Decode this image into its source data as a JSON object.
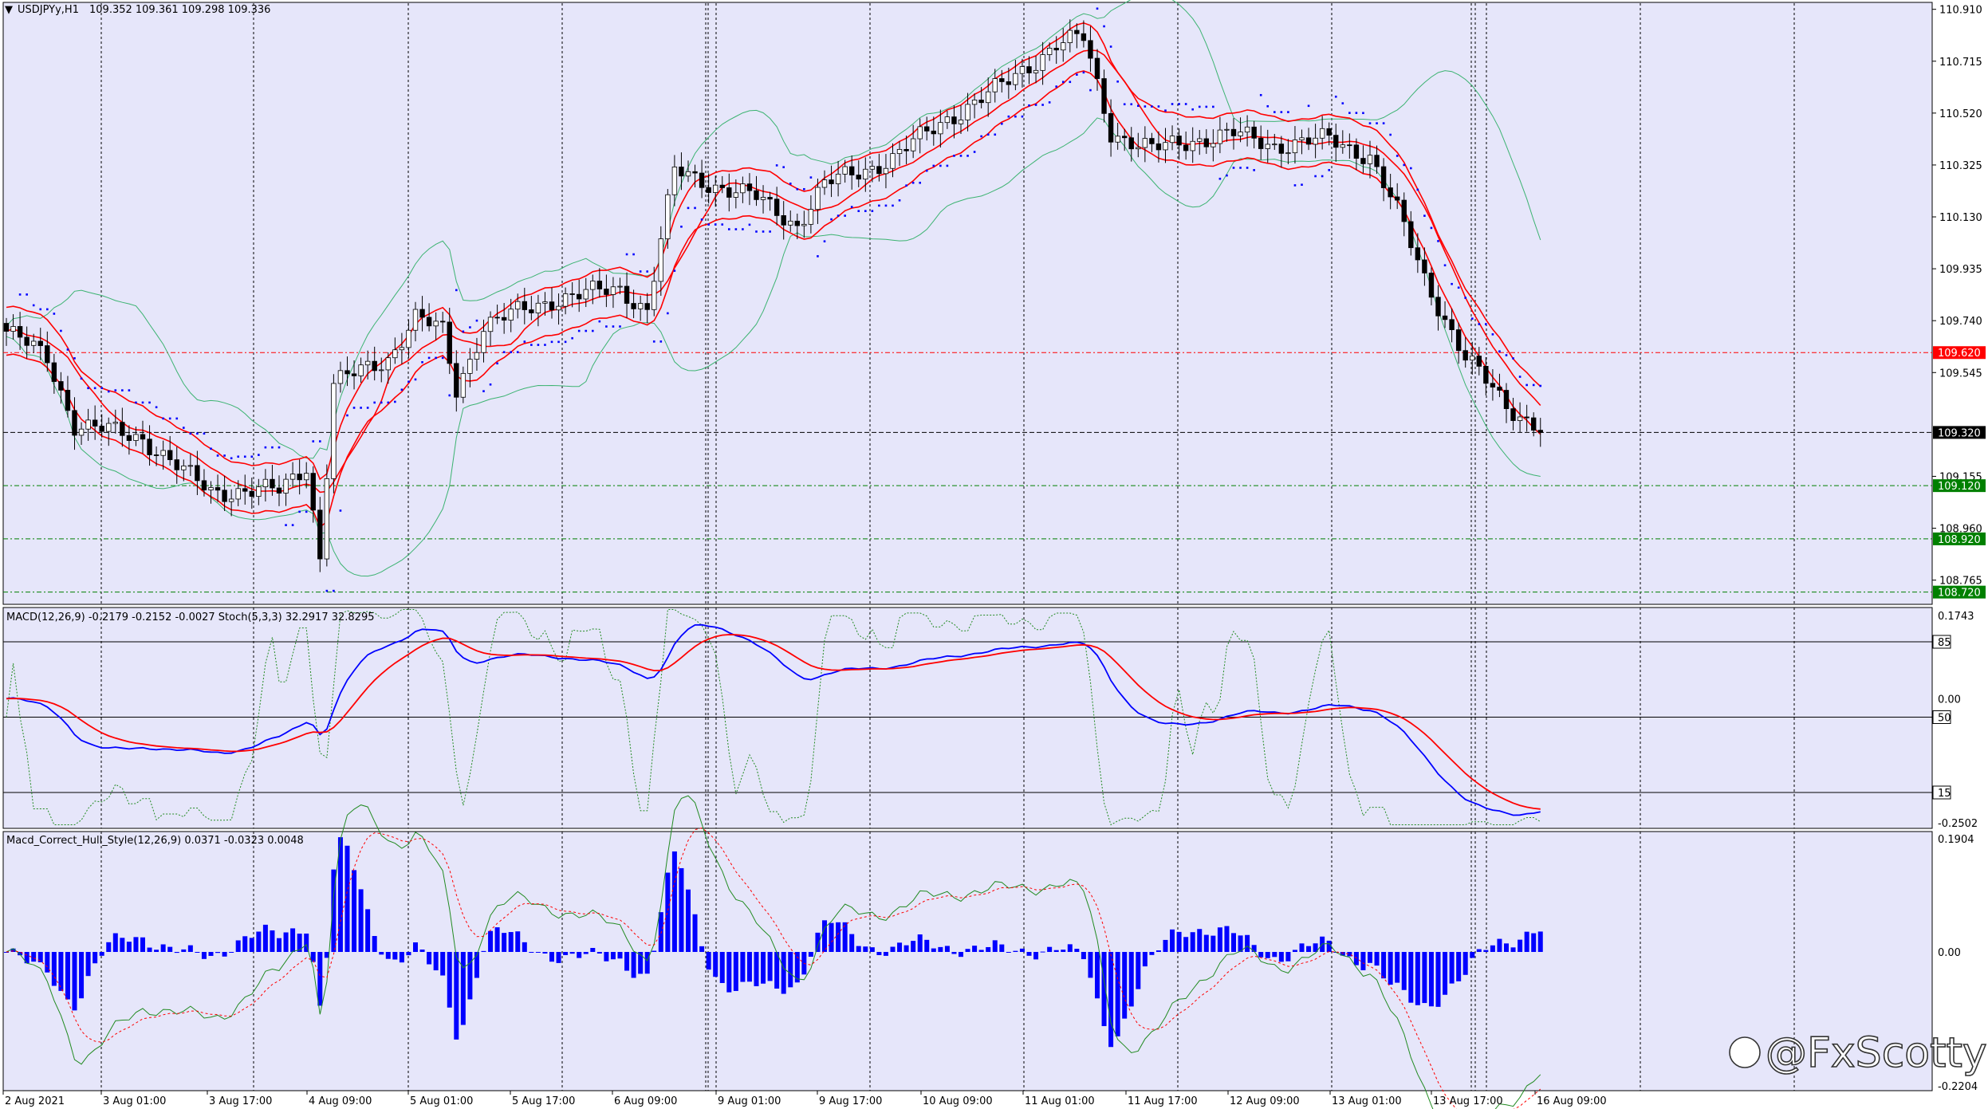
{
  "window": {
    "title": "USDJPYy,H1",
    "ohlc": "109.352 109.361 109.298 109.336"
  },
  "colors": {
    "background": "#e6e6fa",
    "candle_up": "#ffffff",
    "candle_down": "#000000",
    "ma_red": "#ff0000",
    "bollinger": "#3cb371",
    "psar": "#0000ff",
    "macd_main": "#0000ff",
    "macd_signal": "#ff0000",
    "stoch": "#228b22",
    "hist": "#0000ff",
    "level_red": "#ff0000",
    "level_green": "#008000",
    "price_black": "#000000"
  },
  "main_axis": {
    "ticks": [
      "110.910",
      "110.715",
      "110.520",
      "110.325",
      "110.130",
      "109.935",
      "109.740",
      "109.545",
      "109.155",
      "108.960",
      "108.765"
    ],
    "levels": [
      {
        "label": "109.620",
        "color": "red"
      },
      {
        "label": "109.320",
        "color": "black"
      },
      {
        "label": "109.120",
        "color": "green"
      },
      {
        "label": "108.920",
        "color": "green"
      },
      {
        "label": "108.720",
        "color": "green"
      }
    ]
  },
  "macd_panel": {
    "header": "MACD(12,26,9) -0.2179 -0.2152 -0.0027  Stoch(5,3,3) 32.2917 32.8295",
    "ticks": [
      "0.1743",
      "85",
      "0.00",
      "50",
      "15",
      "-0.2502"
    ]
  },
  "hull_panel": {
    "header": "Macd_Correct_Hull_Style(12,26,9) 0.0371 -0.0323 0.0048",
    "ticks": [
      "0.1904",
      "0.00",
      "-0.2204"
    ]
  },
  "time_axis": {
    "labels": [
      "2 Aug 2021",
      "3 Aug 01:00",
      "3 Aug 17:00",
      "4 Aug 09:00",
      "5 Aug 01:00",
      "5 Aug 17:00",
      "6 Aug 09:00",
      "9 Aug 01:00",
      "9 Aug 17:00",
      "10 Aug 09:00",
      "11 Aug 01:00",
      "11 Aug 17:00",
      "12 Aug 09:00",
      "13 Aug 01:00",
      "13 Aug 17:00",
      "16 Aug 09:00"
    ]
  },
  "watermark": "@FxScotty",
  "chart_data": {
    "type": "candlestick",
    "symbol": "USDJPYy",
    "timeframe": "H1",
    "ylim": [
      108.68,
      110.93
    ],
    "close_anchors": [
      [
        0,
        109.7
      ],
      [
        6,
        109.6
      ],
      [
        10,
        109.35
      ],
      [
        20,
        109.3
      ],
      [
        26,
        109.17
      ],
      [
        30,
        109.1
      ],
      [
        40,
        109.1
      ],
      [
        44,
        109.2
      ],
      [
        46,
        108.85
      ],
      [
        48,
        109.5
      ],
      [
        56,
        109.6
      ],
      [
        60,
        109.75
      ],
      [
        64,
        109.7
      ],
      [
        66,
        109.48
      ],
      [
        70,
        109.72
      ],
      [
        80,
        109.82
      ],
      [
        90,
        109.86
      ],
      [
        94,
        109.78
      ],
      [
        98,
        110.3
      ],
      [
        104,
        110.25
      ],
      [
        110,
        110.2
      ],
      [
        116,
        110.1
      ],
      [
        120,
        110.25
      ],
      [
        130,
        110.35
      ],
      [
        138,
        110.5
      ],
      [
        146,
        110.62
      ],
      [
        150,
        110.7
      ],
      [
        154,
        110.78
      ],
      [
        158,
        110.8
      ],
      [
        162,
        110.45
      ],
      [
        168,
        110.38
      ],
      [
        174,
        110.42
      ],
      [
        180,
        110.44
      ],
      [
        186,
        110.4
      ],
      [
        194,
        110.42
      ],
      [
        200,
        110.36
      ],
      [
        204,
        110.15
      ],
      [
        208,
        109.9
      ],
      [
        214,
        109.6
      ],
      [
        220,
        109.42
      ],
      [
        225,
        109.34
      ]
    ],
    "indicators": [
      "MA(red)",
      "Bollinger Bands",
      "Parabolic SAR",
      "MACD(12,26,9)",
      "Stoch(5,3,3)",
      "Macd_Correct_Hull_Style(12,26,9)"
    ]
  }
}
